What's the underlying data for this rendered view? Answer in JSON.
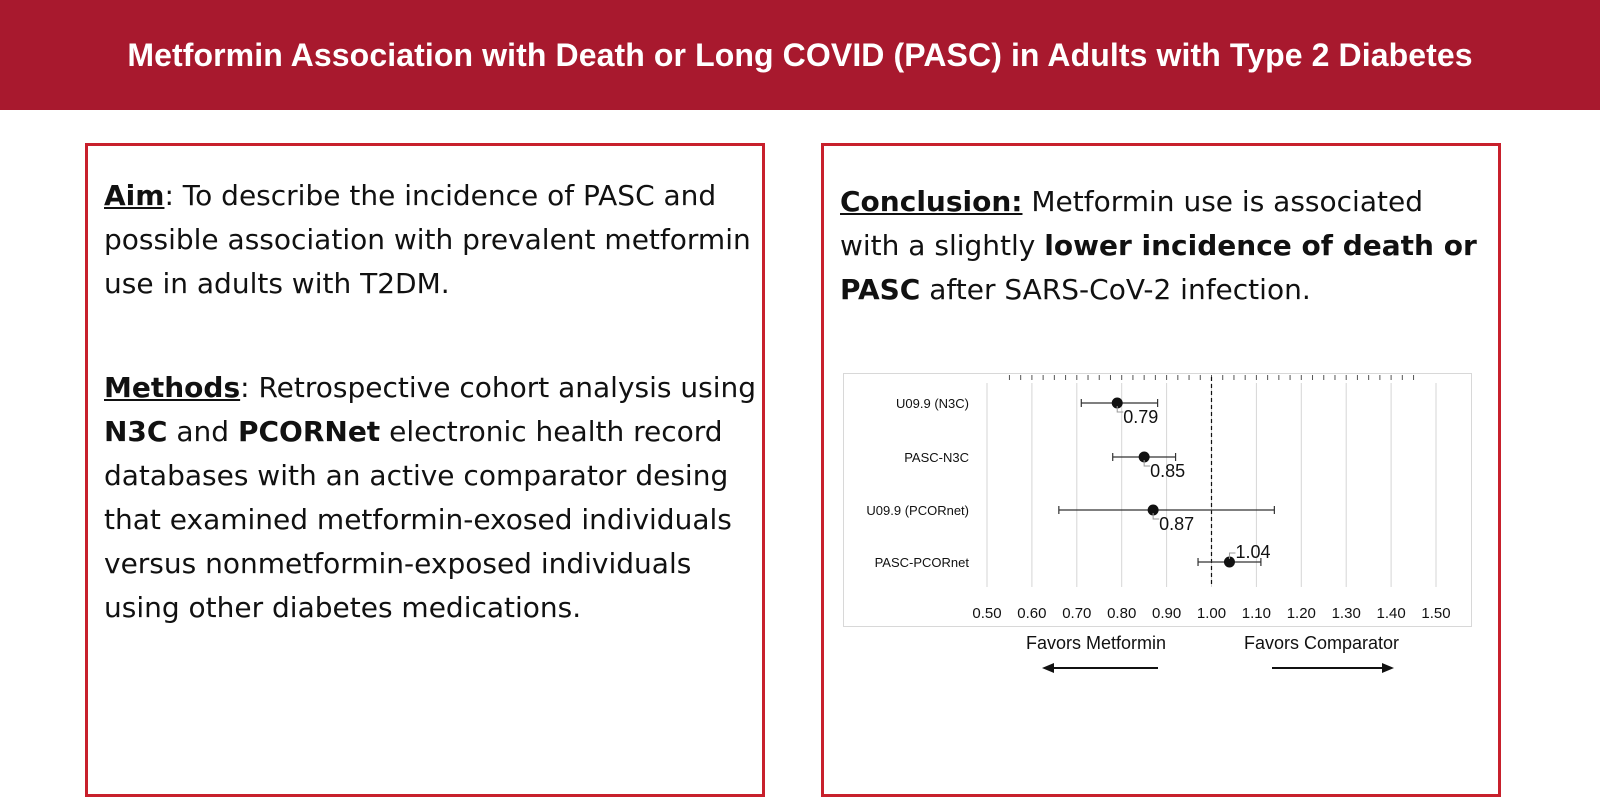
{
  "title": "Metformin Association with Death or Long COVID (PASC) in Adults with Type 2 Diabetes",
  "aim": {
    "label": "Aim",
    "text": ": To describe the incidence of PASC and possible association with prevalent metformin use in adults with T2DM."
  },
  "methods": {
    "label": "Methods",
    "text1": ": Retrospective cohort analysis using ",
    "bold1": "N3C",
    "text2": " and ",
    "bold2": "PCORNet",
    "text3": " electronic health record databases with an active comparator desing that examined metformin-exosed individuals versus nonmetformin-exposed individuals using other diabetes medications."
  },
  "conclusion": {
    "label": "Conclusion:",
    "text1": " Metformin use is associated with a slightly ",
    "bold": "lower incidence of death or PASC",
    "text2": " after SARS-CoV-2 infection."
  },
  "chart_data": {
    "type": "forest",
    "reference_line": 1.0,
    "xlim": [
      0.5,
      1.5
    ],
    "x_ticks": [
      "0.50",
      "0.60",
      "0.70",
      "0.80",
      "0.90",
      "1.00",
      "1.10",
      "1.20",
      "1.30",
      "1.40",
      "1.50"
    ],
    "rows": [
      {
        "label": "U09.9 (N3C)",
        "estimate": 0.79,
        "ci_low": 0.71,
        "ci_high": 0.88,
        "value_label": "0.79"
      },
      {
        "label": "PASC-N3C",
        "estimate": 0.85,
        "ci_low": 0.78,
        "ci_high": 0.92,
        "value_label": "0.85"
      },
      {
        "label": "U09.9 (PCORnet)",
        "estimate": 0.87,
        "ci_low": 0.66,
        "ci_high": 1.14,
        "value_label": "0.87"
      },
      {
        "label": "PASC-PCORnet",
        "estimate": 1.04,
        "ci_low": 0.97,
        "ci_high": 1.11,
        "value_label": "1.04"
      }
    ],
    "favors_left": "Favors Metformin",
    "favors_right": "Favors Comparator"
  }
}
